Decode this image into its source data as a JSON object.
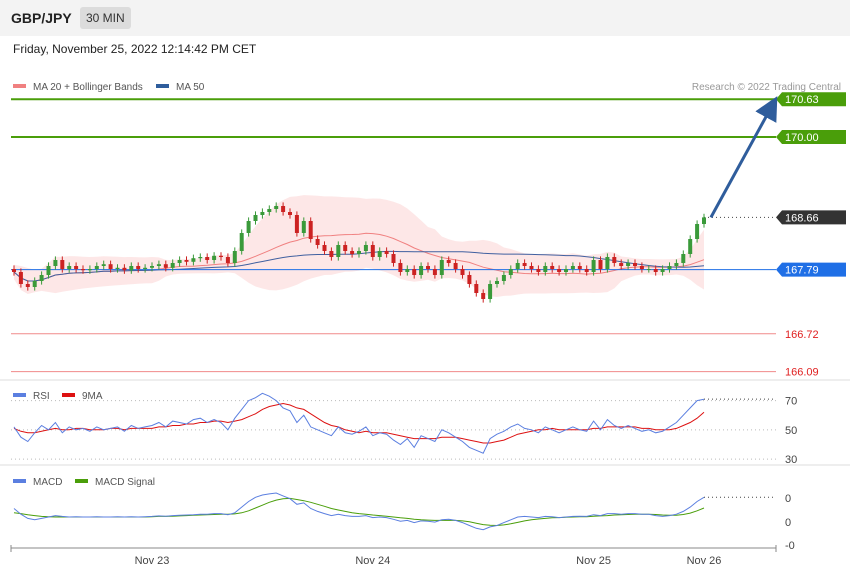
{
  "header": {
    "symbol": "GBP/JPY",
    "timeframe": "30 MIN",
    "datetime": "Friday, November 25, 2022 12:14:42 PM CET"
  },
  "credit": "Research © 2022 Trading Central",
  "colors": {
    "bull": "#3a9a3a",
    "bear": "#cc2222",
    "ma20": "#f08080",
    "ma50": "#4060a0",
    "band_fill": "#fde4e4",
    "resistance": "#4a9e0a",
    "support": "#f08a8a",
    "pivot": "#1f6fe6",
    "price": "#333333",
    "arrow": "#2f5d9c",
    "rsi": "#5b7fe0",
    "rsi_ma": "#dd1111",
    "macd": "#5b7fe0",
    "macd_signal": "#4a9e0a"
  },
  "chart_data": [
    {
      "type": "candlestick",
      "title": "",
      "legend": [
        {
          "label": "MA 20 + Bollinger Bands",
          "color": "#f08080"
        },
        {
          "label": "MA 50",
          "color": "#2f5d9c"
        }
      ],
      "legend_position": "top-left",
      "ylim": [
        165.9,
        170.85
      ],
      "x_ticks": [
        "Nov 23",
        "Nov 24",
        "Nov 25",
        "Nov 26"
      ],
      "x_tick_index": [
        20,
        52,
        84,
        100
      ],
      "levels": [
        {
          "value": 170.63,
          "label": "170.63",
          "kind": "resistance"
        },
        {
          "value": 170.0,
          "label": "170.00",
          "kind": "resistance"
        },
        {
          "value": 168.66,
          "label": "168.66",
          "kind": "price"
        },
        {
          "value": 167.79,
          "label": "167.79",
          "kind": "pivot"
        },
        {
          "value": 166.72,
          "label": "166.72",
          "kind": "support"
        },
        {
          "value": 166.09,
          "label": "166.09",
          "kind": "support"
        }
      ],
      "projection": {
        "from": [
          101,
          168.66
        ],
        "to": [
          110,
          170.55
        ]
      },
      "close": [
        167.75,
        167.55,
        167.5,
        167.6,
        167.7,
        167.85,
        167.95,
        167.8,
        167.85,
        167.8,
        167.78,
        167.8,
        167.85,
        167.88,
        167.8,
        167.82,
        167.78,
        167.85,
        167.8,
        167.82,
        167.85,
        167.88,
        167.82,
        167.9,
        167.95,
        167.92,
        167.98,
        168.0,
        167.95,
        168.02,
        168.0,
        167.9,
        168.1,
        168.4,
        168.6,
        168.7,
        168.75,
        168.8,
        168.85,
        168.75,
        168.7,
        168.4,
        168.6,
        168.3,
        168.2,
        168.1,
        168.0,
        168.2,
        168.1,
        168.05,
        168.1,
        168.2,
        168.0,
        168.1,
        168.05,
        167.9,
        167.75,
        167.8,
        167.7,
        167.85,
        167.8,
        167.7,
        167.95,
        167.9,
        167.8,
        167.7,
        167.55,
        167.4,
        167.3,
        167.55,
        167.6,
        167.7,
        167.8,
        167.9,
        167.85,
        167.8,
        167.75,
        167.85,
        167.8,
        167.75,
        167.8,
        167.85,
        167.8,
        167.75,
        167.95,
        167.8,
        168.0,
        167.9,
        167.85,
        167.9,
        167.85,
        167.8,
        167.8,
        167.75,
        167.8,
        167.85,
        167.9,
        168.05,
        168.3,
        168.55,
        168.66
      ]
    },
    {
      "type": "line",
      "title": "",
      "legend": [
        {
          "label": "RSI",
          "color": "#5b7fe0"
        },
        {
          "label": "9MA",
          "color": "#dd1111"
        }
      ],
      "ylim": [
        28,
        80
      ],
      "y_ticks": [
        70,
        50,
        30
      ],
      "series": [
        {
          "name": "RSI",
          "values": [
            52,
            45,
            42,
            48,
            53,
            50,
            55,
            48,
            52,
            50,
            51,
            49,
            52,
            50,
            51,
            52,
            49,
            53,
            51,
            52,
            53,
            55,
            52,
            56,
            55,
            54,
            57,
            58,
            55,
            57,
            55,
            50,
            58,
            64,
            70,
            72,
            75,
            73,
            70,
            65,
            63,
            55,
            60,
            52,
            50,
            48,
            46,
            52,
            48,
            47,
            49,
            52,
            46,
            48,
            47,
            43,
            40,
            44,
            38,
            46,
            44,
            42,
            50,
            48,
            45,
            42,
            38,
            36,
            34,
            44,
            47,
            49,
            52,
            54,
            51,
            50,
            48,
            52,
            50,
            48,
            50,
            52,
            50,
            49,
            56,
            50,
            57,
            53,
            51,
            53,
            51,
            49,
            50,
            48,
            49,
            52,
            55,
            60,
            65,
            70,
            71
          ]
        },
        {
          "name": "9MA",
          "values": [
            51,
            49,
            48,
            48,
            49,
            50,
            51,
            50,
            50,
            51,
            51,
            50,
            50,
            50,
            51,
            51,
            50,
            51,
            51,
            51,
            51,
            52,
            52,
            53,
            53,
            54,
            54,
            55,
            55,
            56,
            56,
            55,
            56,
            57,
            59,
            61,
            64,
            66,
            67,
            68,
            67,
            65,
            64,
            61,
            58,
            55,
            53,
            52,
            50,
            49,
            48,
            49,
            48,
            48,
            48,
            47,
            46,
            45,
            44,
            44,
            44,
            44,
            45,
            45,
            45,
            44,
            43,
            42,
            41,
            41,
            42,
            43,
            45,
            47,
            48,
            49,
            50,
            50,
            51,
            50,
            50,
            50,
            50,
            50,
            51,
            51,
            52,
            52,
            52,
            52,
            52,
            51,
            51,
            50,
            50,
            50,
            51,
            53,
            55,
            58,
            62
          ]
        }
      ]
    },
    {
      "type": "line",
      "title": "",
      "legend": [
        {
          "label": "MACD",
          "color": "#5b7fe0"
        },
        {
          "label": "MACD Signal",
          "color": "#4a9e0a"
        }
      ],
      "ylim": [
        -1.1,
        1.1
      ],
      "y_ticks": [
        "0",
        "0",
        "-0"
      ],
      "series": [
        {
          "name": "MACD",
          "values": [
            0.3,
            0.1,
            -0.05,
            -0.1,
            -0.05,
            0.0,
            0.05,
            0.02,
            0.0,
            0.01,
            0.0,
            0.0,
            0.01,
            0.0,
            0.0,
            0.01,
            0.0,
            0.01,
            0.0,
            0.01,
            0.02,
            0.04,
            0.03,
            0.05,
            0.06,
            0.07,
            0.08,
            0.1,
            0.1,
            0.12,
            0.12,
            0.08,
            0.15,
            0.35,
            0.55,
            0.7,
            0.78,
            0.82,
            0.85,
            0.75,
            0.65,
            0.45,
            0.5,
            0.3,
            0.2,
            0.12,
            0.05,
            0.1,
            0.05,
            0.02,
            0.02,
            0.05,
            -0.02,
            0.0,
            -0.02,
            -0.08,
            -0.15,
            -0.12,
            -0.2,
            -0.14,
            -0.15,
            -0.18,
            -0.1,
            -0.08,
            -0.12,
            -0.2,
            -0.3,
            -0.4,
            -0.45,
            -0.35,
            -0.3,
            -0.2,
            -0.1,
            0.0,
            0.02,
            0.0,
            -0.02,
            0.02,
            0.01,
            -0.02,
            0.0,
            0.02,
            0.03,
            0.02,
            0.08,
            0.05,
            0.12,
            0.12,
            0.1,
            0.12,
            0.12,
            0.1,
            0.1,
            0.05,
            0.02,
            0.05,
            0.1,
            0.2,
            0.35,
            0.55,
            0.7
          ]
        },
        {
          "name": "MACD Signal",
          "values": [
            0.15,
            0.12,
            0.08,
            0.05,
            0.02,
            0.01,
            0.0,
            0.0,
            0.0,
            0.0,
            0.0,
            0.0,
            0.0,
            0.0,
            0.0,
            0.0,
            0.0,
            0.0,
            0.0,
            0.0,
            0.01,
            0.02,
            0.02,
            0.03,
            0.04,
            0.05,
            0.06,
            0.07,
            0.08,
            0.09,
            0.1,
            0.1,
            0.11,
            0.15,
            0.22,
            0.32,
            0.42,
            0.52,
            0.6,
            0.65,
            0.66,
            0.62,
            0.58,
            0.52,
            0.45,
            0.38,
            0.3,
            0.25,
            0.2,
            0.15,
            0.12,
            0.1,
            0.07,
            0.05,
            0.03,
            0.0,
            -0.03,
            -0.05,
            -0.08,
            -0.1,
            -0.11,
            -0.12,
            -0.12,
            -0.12,
            -0.12,
            -0.14,
            -0.17,
            -0.22,
            -0.27,
            -0.29,
            -0.3,
            -0.28,
            -0.24,
            -0.19,
            -0.14,
            -0.1,
            -0.07,
            -0.05,
            -0.03,
            -0.02,
            -0.01,
            0.0,
            0.01,
            0.01,
            0.03,
            0.04,
            0.05,
            0.07,
            0.08,
            0.09,
            0.1,
            0.1,
            0.1,
            0.09,
            0.07,
            0.06,
            0.06,
            0.09,
            0.14,
            0.22,
            0.32
          ]
        }
      ]
    }
  ]
}
